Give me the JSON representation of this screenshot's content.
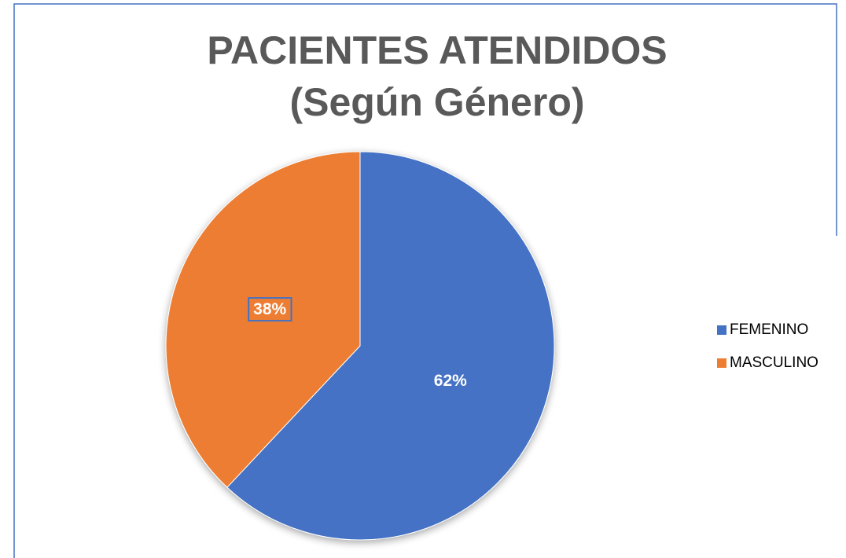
{
  "chart_data": {
    "type": "pie",
    "title": "PACIENTES ATENDIDOS",
    "subtitle": "(Según Género)",
    "categories": [
      "FEMENINO",
      "MASCULINO"
    ],
    "values": [
      62,
      38
    ],
    "value_labels": [
      "62%",
      "38%"
    ],
    "colors": [
      "#4472c4",
      "#ed7d31"
    ],
    "legend": "right"
  }
}
